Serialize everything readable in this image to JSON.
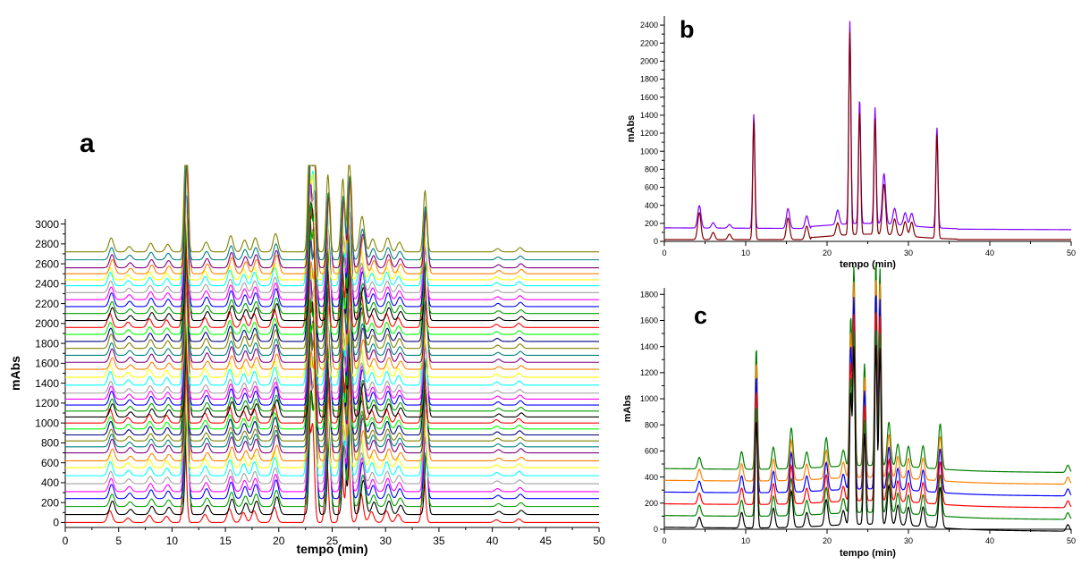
{
  "colors": {
    "axis": "#000000",
    "a_palette": [
      "#ff0000",
      "#000000",
      "#00a000",
      "#0000ff",
      "#ff00ff",
      "#a0a0a0",
      "#00ffff",
      "#ffff00",
      "#ff8000",
      "#800080",
      "#008080",
      "#808000",
      "#000080",
      "#00ff00"
    ],
    "b_series": [
      "#800000",
      "#8000ff"
    ],
    "c_series": [
      "#000000",
      "#008000",
      "#ff0000",
      "#0000ff",
      "#ff8000",
      "#008000"
    ]
  },
  "chart_data": [
    {
      "id": "a",
      "panel_label": "a",
      "type": "line",
      "xlabel": "tempo (min)",
      "ylabel": "mAbs",
      "xlim": [
        0,
        50
      ],
      "ylim": [
        -50,
        3050
      ],
      "xticks": [
        0,
        5,
        10,
        15,
        20,
        25,
        30,
        35,
        40,
        45,
        50
      ],
      "yticks": [
        0,
        200,
        400,
        600,
        800,
        1000,
        1200,
        1400,
        1600,
        1800,
        2000,
        2200,
        2400,
        2600,
        2800,
        3000
      ],
      "series_count": 40,
      "baseline_offsets": [
        0,
        80,
        160,
        240,
        310,
        390,
        470,
        550,
        620,
        700,
        760,
        820,
        880,
        940,
        1000,
        1060,
        1120,
        1180,
        1240,
        1300,
        1380,
        1460,
        1540,
        1610,
        1680,
        1750,
        1820,
        1890,
        1960,
        2030,
        2100,
        2170,
        2240,
        2310,
        2380,
        2440,
        2500,
        2560,
        2640,
        2720
      ],
      "peaks": [
        {
          "x": 4.3,
          "h": 130
        },
        {
          "x": 6.0,
          "h": 50
        },
        {
          "x": 8.0,
          "h": 80
        },
        {
          "x": 9.6,
          "h": 70
        },
        {
          "x": 11.3,
          "h": 1050
        },
        {
          "x": 13.2,
          "h": 90
        },
        {
          "x": 15.5,
          "h": 150
        },
        {
          "x": 16.8,
          "h": 110
        },
        {
          "x": 17.8,
          "h": 130
        },
        {
          "x": 19.7,
          "h": 170
        },
        {
          "x": 22.9,
          "h": 1150
        },
        {
          "x": 23.3,
          "h": 1050
        },
        {
          "x": 24.6,
          "h": 720
        },
        {
          "x": 26.0,
          "h": 680
        },
        {
          "x": 26.6,
          "h": 900
        },
        {
          "x": 27.8,
          "h": 330
        },
        {
          "x": 28.8,
          "h": 120
        },
        {
          "x": 30.2,
          "h": 130
        },
        {
          "x": 31.3,
          "h": 90
        },
        {
          "x": 33.7,
          "h": 570
        },
        {
          "x": 40.5,
          "h": 30
        },
        {
          "x": 42.6,
          "h": 40
        }
      ]
    },
    {
      "id": "b",
      "panel_label": "b",
      "type": "line",
      "xlabel": "tempo (min)",
      "ylabel": "mAbs",
      "xlim": [
        0,
        50
      ],
      "ylim": [
        0,
        2500
      ],
      "xticks": [
        0,
        10,
        20,
        30,
        40,
        50
      ],
      "yticks": [
        0,
        200,
        400,
        600,
        800,
        1000,
        1200,
        1400,
        1600,
        1800,
        2000,
        2200,
        2400
      ],
      "series": [
        {
          "baseline": 20,
          "tail": 20,
          "peaks": [
            {
              "x": 4.3,
              "h": 300
            },
            {
              "x": 6.0,
              "h": 80
            },
            {
              "x": 8.0,
              "h": 60
            },
            {
              "x": 11.0,
              "h": 1320
            },
            {
              "x": 15.2,
              "h": 240
            },
            {
              "x": 17.5,
              "h": 150
            },
            {
              "x": 21.3,
              "h": 140
            },
            {
              "x": 22.8,
              "h": 2250
            },
            {
              "x": 24.0,
              "h": 1380
            },
            {
              "x": 25.9,
              "h": 1280
            },
            {
              "x": 27.0,
              "h": 560
            },
            {
              "x": 28.3,
              "h": 180
            },
            {
              "x": 29.6,
              "h": 160
            },
            {
              "x": 30.4,
              "h": 160
            },
            {
              "x": 33.5,
              "h": 1160
            }
          ]
        },
        {
          "baseline": 150,
          "tail": 130,
          "peaks": [
            {
              "x": 4.3,
              "h": 250
            },
            {
              "x": 6.0,
              "h": 60
            },
            {
              "x": 8.0,
              "h": 40
            },
            {
              "x": 11.0,
              "h": 1270
            },
            {
              "x": 15.2,
              "h": 220
            },
            {
              "x": 17.5,
              "h": 140
            },
            {
              "x": 21.3,
              "h": 160
            },
            {
              "x": 22.8,
              "h": 2250
            },
            {
              "x": 24.0,
              "h": 1390
            },
            {
              "x": 25.9,
              "h": 1290
            },
            {
              "x": 27.0,
              "h": 560
            },
            {
              "x": 28.3,
              "h": 180
            },
            {
              "x": 29.6,
              "h": 140
            },
            {
              "x": 30.4,
              "h": 140
            },
            {
              "x": 33.5,
              "h": 1120
            }
          ]
        }
      ]
    },
    {
      "id": "c",
      "panel_label": "c",
      "type": "line",
      "xlabel": "tempo (min)",
      "ylabel": "mAbs",
      "xlim": [
        0,
        50
      ],
      "ylim": [
        0,
        1850
      ],
      "xticks": [
        0,
        10,
        20,
        30,
        40,
        50
      ],
      "yticks": [
        0,
        200,
        400,
        600,
        800,
        1000,
        1200,
        1400,
        1600,
        1800
      ],
      "series": [
        {
          "baseline": 0,
          "scale": 1.0
        },
        {
          "baseline": 90,
          "scale": 1.02
        },
        {
          "baseline": 180,
          "scale": 1.05
        },
        {
          "baseline": 270,
          "scale": 1.08
        },
        {
          "baseline": 360,
          "scale": 1.1
        },
        {
          "baseline": 450,
          "scale": 1.12
        }
      ],
      "peaks": [
        {
          "x": 4.3,
          "h": 80
        },
        {
          "x": 9.5,
          "h": 120
        },
        {
          "x": 11.3,
          "h": 830
        },
        {
          "x": 13.4,
          "h": 150
        },
        {
          "x": 15.6,
          "h": 280
        },
        {
          "x": 17.5,
          "h": 110
        },
        {
          "x": 19.9,
          "h": 200
        },
        {
          "x": 22.0,
          "h": 110
        },
        {
          "x": 22.9,
          "h": 1000
        },
        {
          "x": 23.3,
          "h": 1350
        },
        {
          "x": 24.6,
          "h": 700
        },
        {
          "x": 26.0,
          "h": 1400
        },
        {
          "x": 26.5,
          "h": 1350
        },
        {
          "x": 27.6,
          "h": 300
        },
        {
          "x": 28.7,
          "h": 150
        },
        {
          "x": 30.0,
          "h": 140
        },
        {
          "x": 31.8,
          "h": 150
        },
        {
          "x": 33.9,
          "h": 310
        },
        {
          "x": 49.6,
          "h": 50
        }
      ]
    }
  ]
}
